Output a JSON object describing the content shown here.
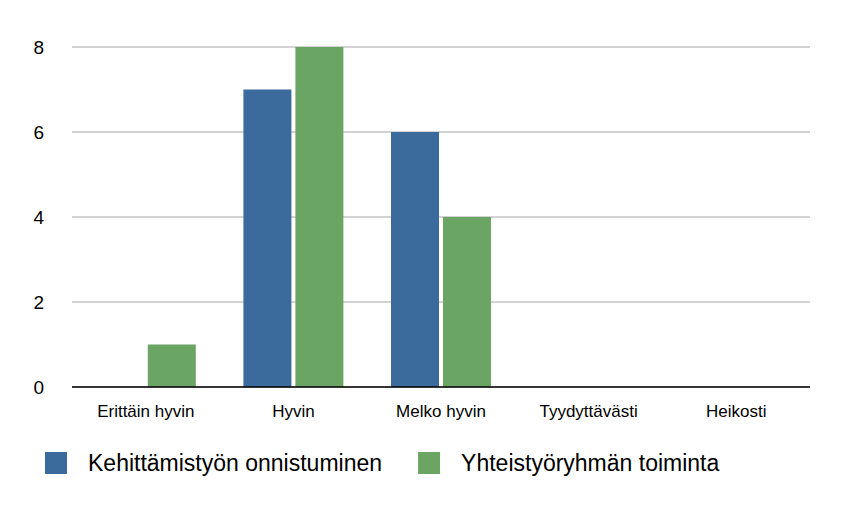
{
  "chart_data": {
    "type": "bar",
    "categories": [
      "Erittäin hyvin",
      "Hyvin",
      "Melko hyvin",
      "Tyydyttävästi",
      "Heikosti"
    ],
    "series": [
      {
        "name": "Kehittämistyön onnistuminen",
        "color": "#3a6b9c",
        "values": [
          0,
          7,
          6,
          0,
          0
        ]
      },
      {
        "name": "Yhteistyöryhmän toiminta",
        "color": "#6aa564",
        "values": [
          1,
          8,
          4,
          0,
          0
        ]
      }
    ],
    "ylim": [
      0,
      8
    ],
    "yticks": [
      0,
      2,
      4,
      6,
      8
    ],
    "grid": true,
    "legend": "bottom"
  }
}
